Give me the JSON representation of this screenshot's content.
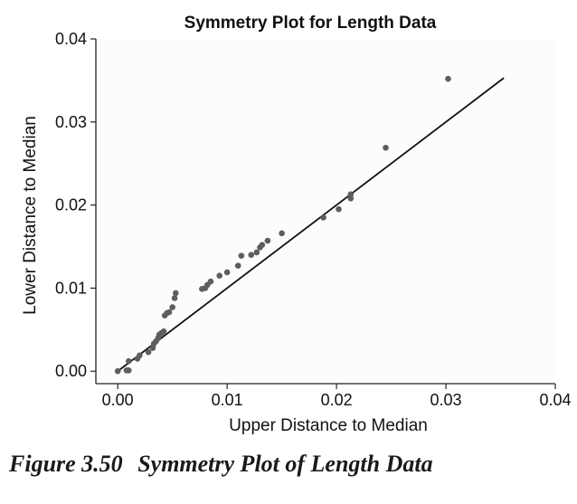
{
  "caption": {
    "number": "Figure 3.50",
    "text": "Symmetry Plot of Length Data"
  },
  "colors": {
    "background": "#ffffff",
    "plot_area": "#fcfcfa",
    "axis": "#222222",
    "points": "#5e5e5e",
    "line": "#111111",
    "text": "#111111"
  },
  "chart_data": {
    "type": "scatter",
    "title": "Symmetry Plot for Length Data",
    "xlabel": "Upper Distance to Median",
    "ylabel": "Lower Distance to Median",
    "xlim": [
      -0.002,
      0.04
    ],
    "ylim": [
      -0.0015,
      0.04
    ],
    "xticks": [
      0.0,
      0.01,
      0.02,
      0.03,
      0.04
    ],
    "xtick_labels": [
      "0.00",
      "0.01",
      "0.02",
      "0.03",
      "0.04"
    ],
    "yticks": [
      0.0,
      0.01,
      0.02,
      0.03,
      0.04
    ],
    "ytick_labels": [
      "0.00",
      "0.01",
      "0.02",
      "0.03",
      "0.04"
    ],
    "grid": false,
    "legend": "none",
    "reference_line": {
      "x": [
        0.0,
        0.0353
      ],
      "y": [
        0.0,
        0.0353
      ]
    },
    "points": [
      [
        0.0,
        0.0
      ],
      [
        0.0008,
        0.0001
      ],
      [
        0.001,
        0.0001
      ],
      [
        0.001,
        0.0012
      ],
      [
        0.0018,
        0.0015
      ],
      [
        0.002,
        0.0019
      ],
      [
        0.0028,
        0.0023
      ],
      [
        0.0032,
        0.0028
      ],
      [
        0.0033,
        0.0033
      ],
      [
        0.0035,
        0.0036
      ],
      [
        0.0037,
        0.004
      ],
      [
        0.0038,
        0.0044
      ],
      [
        0.004,
        0.0046
      ],
      [
        0.0042,
        0.0048
      ],
      [
        0.0043,
        0.0067
      ],
      [
        0.0045,
        0.007
      ],
      [
        0.0047,
        0.0071
      ],
      [
        0.005,
        0.0077
      ],
      [
        0.0052,
        0.0088
      ],
      [
        0.0053,
        0.0094
      ],
      [
        0.0077,
        0.0099
      ],
      [
        0.008,
        0.01
      ],
      [
        0.0082,
        0.0104
      ],
      [
        0.0085,
        0.0108
      ],
      [
        0.0093,
        0.0115
      ],
      [
        0.01,
        0.0119
      ],
      [
        0.011,
        0.0127
      ],
      [
        0.0113,
        0.0139
      ],
      [
        0.0122,
        0.014
      ],
      [
        0.0127,
        0.0143
      ],
      [
        0.013,
        0.0149
      ],
      [
        0.0132,
        0.0152
      ],
      [
        0.0137,
        0.0157
      ],
      [
        0.015,
        0.0166
      ],
      [
        0.0188,
        0.0185
      ],
      [
        0.0202,
        0.0195
      ],
      [
        0.0213,
        0.0208
      ],
      [
        0.0213,
        0.0213
      ],
      [
        0.0245,
        0.0269
      ],
      [
        0.0302,
        0.0352
      ]
    ]
  }
}
